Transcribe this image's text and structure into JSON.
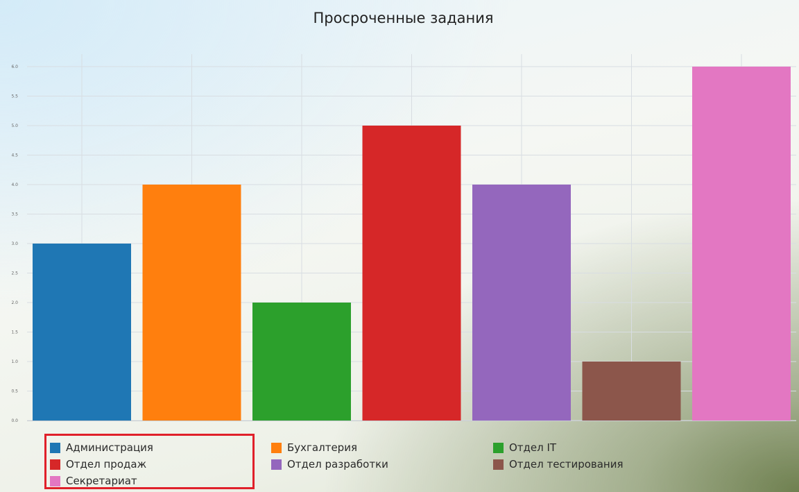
{
  "chart_data": {
    "type": "bar",
    "title": "Просроченные задания",
    "xlabel": "",
    "ylabel": "",
    "ylim": [
      0,
      6
    ],
    "grid": true,
    "legend_position": "bottom",
    "yticks": [
      "0.0",
      "0.5",
      "1.0",
      "1.5",
      "2.0",
      "2.5",
      "3.0",
      "3.5",
      "4.0",
      "4.5",
      "5.0",
      "5.5",
      "6.0"
    ],
    "categories": [
      "Администрация",
      "Бухгалтерия",
      "Отдел IT",
      "Отдел продаж",
      "Отдел разработки",
      "Отдел тестирования",
      "Секретариат"
    ],
    "values": [
      3,
      4,
      2,
      5,
      4,
      1,
      6
    ],
    "colors": [
      "#1f77b4",
      "#ff7f0e",
      "#2ca02c",
      "#d62728",
      "#9467bd",
      "#8c564b",
      "#e377c2"
    ]
  },
  "legend": {
    "highlight_color": "#e0202a",
    "items": [
      {
        "label": "Администрация",
        "color": "#1f77b4"
      },
      {
        "label": "Бухгалтерия",
        "color": "#ff7f0e"
      },
      {
        "label": "Отдел IT",
        "color": "#2ca02c"
      },
      {
        "label": "Отдел продаж",
        "color": "#d62728"
      },
      {
        "label": "Отдел разработки",
        "color": "#9467bd"
      },
      {
        "label": "Отдел тестирования",
        "color": "#8c564b"
      },
      {
        "label": "Секретариат",
        "color": "#e377c2"
      }
    ]
  }
}
